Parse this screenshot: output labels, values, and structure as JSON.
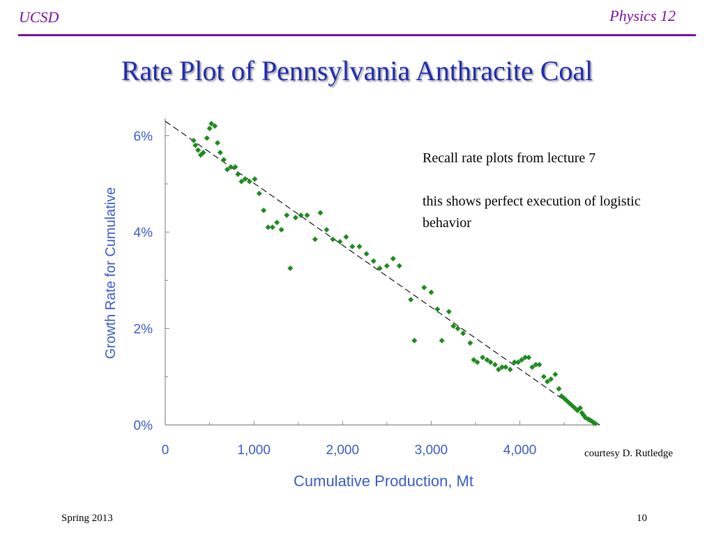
{
  "header": {
    "left": "UCSD",
    "right": "Physics 12"
  },
  "slide": {
    "title": "Rate Plot of Pennsylvania Anthracite Coal",
    "note_line1": "Recall rate plots from lecture 7",
    "note_line2": "this shows perfect execution of logistic behavior",
    "credit": "courtesy D. Rutledge"
  },
  "footer": {
    "left": "Spring 2013",
    "right": "10"
  },
  "colors": {
    "accent": "#7b0fa6",
    "title": "#1f2bb3",
    "axis_text": "#3a5bc7",
    "points": "#1e8a1e"
  },
  "chart_data": {
    "type": "scatter",
    "xlabel": "Cumulative Production, Mt",
    "ylabel": "Growth Rate for Cumulative",
    "x_ticks": [
      0,
      1000,
      2000,
      3000,
      4000
    ],
    "x_tick_labels": [
      "0",
      "1,000",
      "2,000",
      "3,000",
      "4,000"
    ],
    "y_ticks": [
      0,
      2,
      4,
      6
    ],
    "y_tick_labels": [
      "0%",
      "2%",
      "4%",
      "6%"
    ],
    "xlim": [
      0,
      4900
    ],
    "ylim": [
      0,
      6.3
    ],
    "grid": false,
    "trend_line": {
      "style": "dashed",
      "from": [
        0,
        6.3
      ],
      "to": [
        4900,
        0
      ]
    },
    "points": [
      [
        320,
        5.9
      ],
      [
        340,
        5.8
      ],
      [
        370,
        5.7
      ],
      [
        400,
        5.6
      ],
      [
        430,
        5.65
      ],
      [
        470,
        5.95
      ],
      [
        500,
        6.15
      ],
      [
        520,
        6.25
      ],
      [
        560,
        6.2
      ],
      [
        590,
        5.85
      ],
      [
        620,
        5.65
      ],
      [
        660,
        5.5
      ],
      [
        700,
        5.3
      ],
      [
        740,
        5.35
      ],
      [
        790,
        5.35
      ],
      [
        820,
        5.2
      ],
      [
        860,
        5.05
      ],
      [
        900,
        5.1
      ],
      [
        950,
        5.05
      ],
      [
        1010,
        5.1
      ],
      [
        1060,
        4.8
      ],
      [
        1110,
        4.45
      ],
      [
        1160,
        4.1
      ],
      [
        1210,
        4.1
      ],
      [
        1260,
        4.2
      ],
      [
        1310,
        4.05
      ],
      [
        1370,
        4.35
      ],
      [
        1410,
        3.25
      ],
      [
        1470,
        4.3
      ],
      [
        1530,
        4.35
      ],
      [
        1600,
        4.35
      ],
      [
        1690,
        3.85
      ],
      [
        1750,
        4.4
      ],
      [
        1820,
        4.05
      ],
      [
        1890,
        3.85
      ],
      [
        1970,
        3.8
      ],
      [
        2040,
        3.9
      ],
      [
        2110,
        3.7
      ],
      [
        2190,
        3.7
      ],
      [
        2270,
        3.55
      ],
      [
        2350,
        3.4
      ],
      [
        2420,
        3.25
      ],
      [
        2500,
        3.3
      ],
      [
        2570,
        3.45
      ],
      [
        2640,
        3.3
      ],
      [
        2770,
        2.6
      ],
      [
        2810,
        1.75
      ],
      [
        2920,
        2.85
      ],
      [
        3000,
        2.75
      ],
      [
        3070,
        2.4
      ],
      [
        3120,
        1.75
      ],
      [
        3200,
        2.35
      ],
      [
        3250,
        2.05
      ],
      [
        3300,
        2.0
      ],
      [
        3360,
        1.9
      ],
      [
        3440,
        1.7
      ],
      [
        3480,
        1.35
      ],
      [
        3520,
        1.3
      ],
      [
        3580,
        1.4
      ],
      [
        3630,
        1.35
      ],
      [
        3670,
        1.3
      ],
      [
        3720,
        1.25
      ],
      [
        3760,
        1.15
      ],
      [
        3800,
        1.2
      ],
      [
        3840,
        1.2
      ],
      [
        3890,
        1.15
      ],
      [
        3940,
        1.3
      ],
      [
        3980,
        1.3
      ],
      [
        4020,
        1.35
      ],
      [
        4060,
        1.4
      ],
      [
        4100,
        1.4
      ],
      [
        4140,
        1.2
      ],
      [
        4180,
        1.25
      ],
      [
        4220,
        1.25
      ],
      [
        4270,
        1.0
      ],
      [
        4310,
        0.9
      ],
      [
        4350,
        0.95
      ],
      [
        4400,
        1.05
      ],
      [
        4440,
        0.75
      ],
      [
        4470,
        0.6
      ],
      [
        4500,
        0.55
      ],
      [
        4530,
        0.5
      ],
      [
        4560,
        0.45
      ],
      [
        4590,
        0.4
      ],
      [
        4620,
        0.35
      ],
      [
        4650,
        0.3
      ],
      [
        4680,
        0.35
      ],
      [
        4700,
        0.25
      ],
      [
        4720,
        0.2
      ],
      [
        4740,
        0.15
      ],
      [
        4770,
        0.12
      ],
      [
        4790,
        0.1
      ],
      [
        4810,
        0.08
      ],
      [
        4830,
        0.05
      ],
      [
        4850,
        0.03
      ]
    ]
  }
}
